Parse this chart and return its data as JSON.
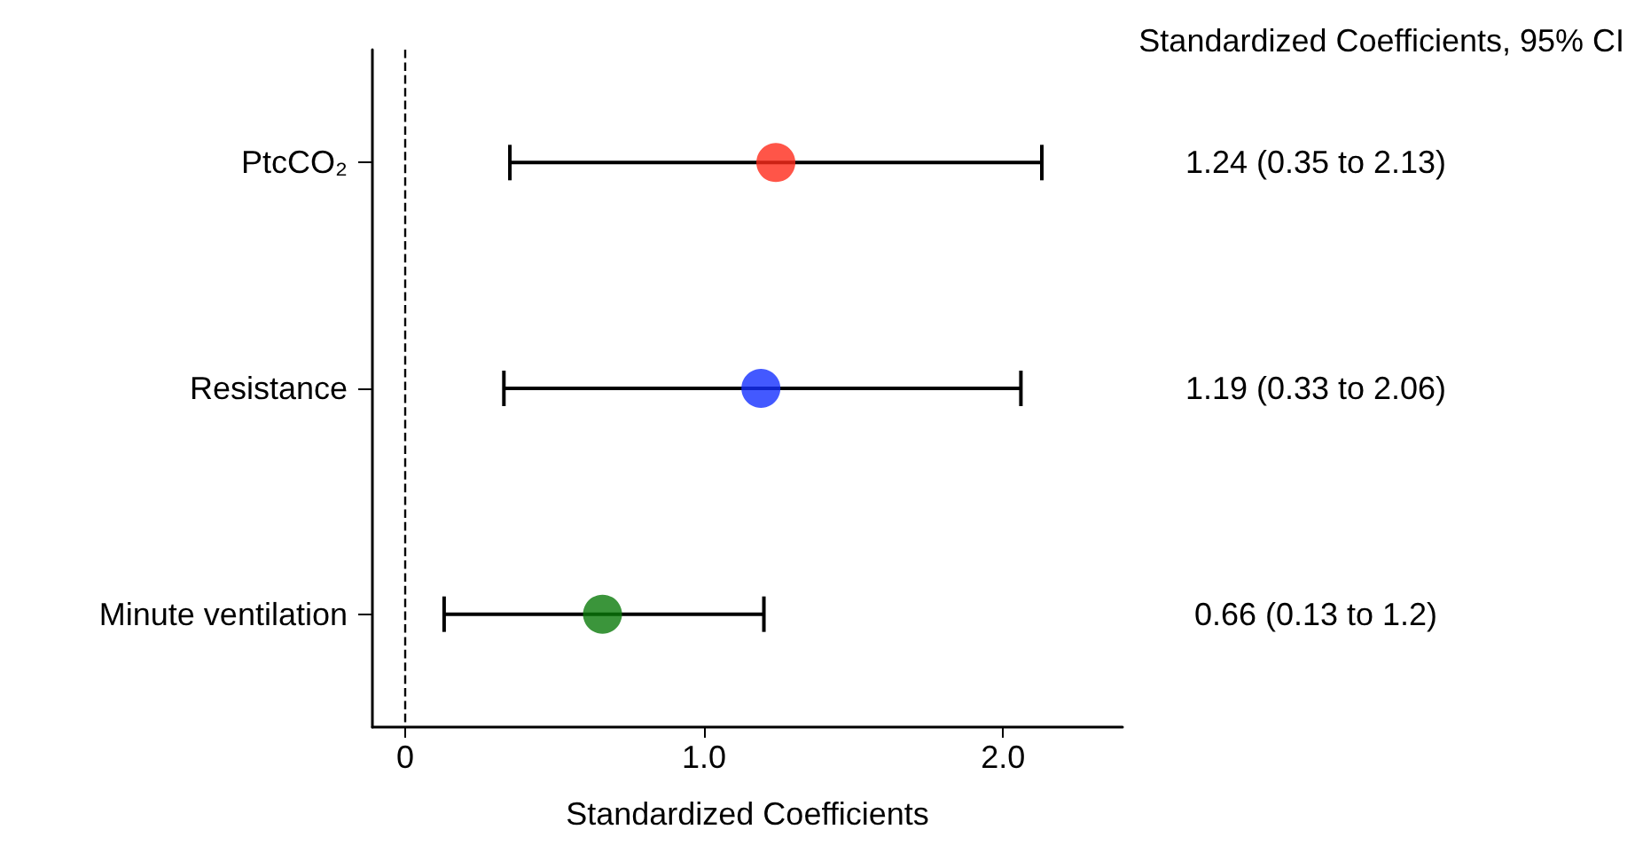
{
  "chart_data": {
    "type": "scatter",
    "orientation": "horizontal",
    "xlabel": "Standardized Coefficients",
    "categories": [
      "PtcCO₂",
      "Resistance",
      "Minute ventilation"
    ],
    "values": [
      1.24,
      1.19,
      0.66
    ],
    "colors": [
      "#ff2a1a",
      "#1430ff",
      "#0a7a0a"
    ],
    "errors": [
      [
        0.35,
        2.13
      ],
      [
        0.33,
        2.06
      ],
      [
        0.13,
        1.2
      ]
    ],
    "value_labels": [
      "1.24 (0.35 to 2.13)",
      "1.19 (0.33 to 2.06)",
      "0.66 (0.13 to 1.2)"
    ],
    "annotations": [
      "Standardized Coefficients, 95% CI"
    ],
    "xlim": [
      -0.11,
      2.4
    ],
    "xticks": [
      {
        "value": 0,
        "label": "0"
      },
      {
        "value": 1,
        "label": "1.0"
      },
      {
        "value": 2,
        "label": "2.0"
      }
    ],
    "ref_lines": [
      {
        "axis": "x",
        "value": 0,
        "line_style": "dashed",
        "color": "#000000"
      }
    ],
    "marker": "circle"
  }
}
